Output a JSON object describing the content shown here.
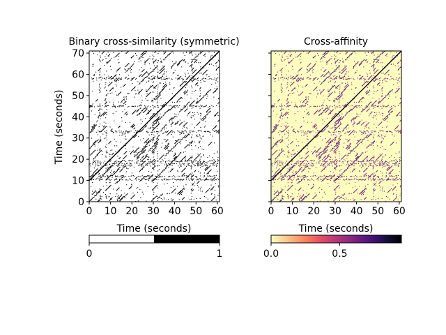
{
  "chart_data": [
    {
      "type": "heatmap",
      "title": "Binary cross-similarity (symmetric)",
      "xlabel": "Time (seconds)",
      "ylabel": "Time (seconds)",
      "xlim": [
        0,
        61
      ],
      "ylim": [
        0,
        71
      ],
      "xticks": [
        0,
        10,
        20,
        30,
        40,
        50,
        60
      ],
      "yticks": [
        0,
        10,
        20,
        30,
        40,
        50,
        60,
        70
      ],
      "colormap": "gray_r",
      "background_color": "#ffffff",
      "mark_color": "#000000",
      "colorbar": {
        "ticks": [
          0,
          1
        ],
        "tick_labels": [
          "0",
          "1"
        ],
        "range": [
          0,
          1
        ]
      },
      "structure": {
        "main_diagonal": {
          "from": [
            0,
            10
          ],
          "to": [
            61,
            71
          ]
        },
        "parallel_diagonals_y_offset_seconds": [
          -4,
          0,
          6,
          10,
          18,
          25,
          32,
          44,
          -20,
          -14
        ],
        "horizontal_bands_y_seconds": [
          10.5,
          12,
          17,
          18,
          19,
          33,
          45,
          58
        ],
        "vertical_bands_x_seconds": [
          5,
          8,
          30,
          32,
          48,
          52
        ]
      }
    },
    {
      "type": "heatmap",
      "title": "Cross-affinity",
      "xlabel": "Time (seconds)",
      "ylabel": "",
      "xlim": [
        0,
        61
      ],
      "ylim": [
        0,
        71
      ],
      "xticks": [
        0,
        10,
        20,
        30,
        40,
        50,
        60
      ],
      "yticks": [
        0,
        10,
        20,
        30,
        40,
        50,
        60,
        70
      ],
      "show_ytick_labels": false,
      "colormap": "magma_r",
      "background_color": "#fcfdbf",
      "colorbar": {
        "ticks": [
          0.0,
          0.5
        ],
        "tick_labels": [
          "0.0",
          "0.5"
        ],
        "range": [
          0,
          0.95
        ],
        "colors": [
          "#fcfdbf",
          "#fed395",
          "#fea973",
          "#fa7d5e",
          "#e95462",
          "#c83e73",
          "#a3307e",
          "#7e2482",
          "#59157e",
          "#331067",
          "#110b2e",
          "#000004"
        ]
      }
    }
  ]
}
